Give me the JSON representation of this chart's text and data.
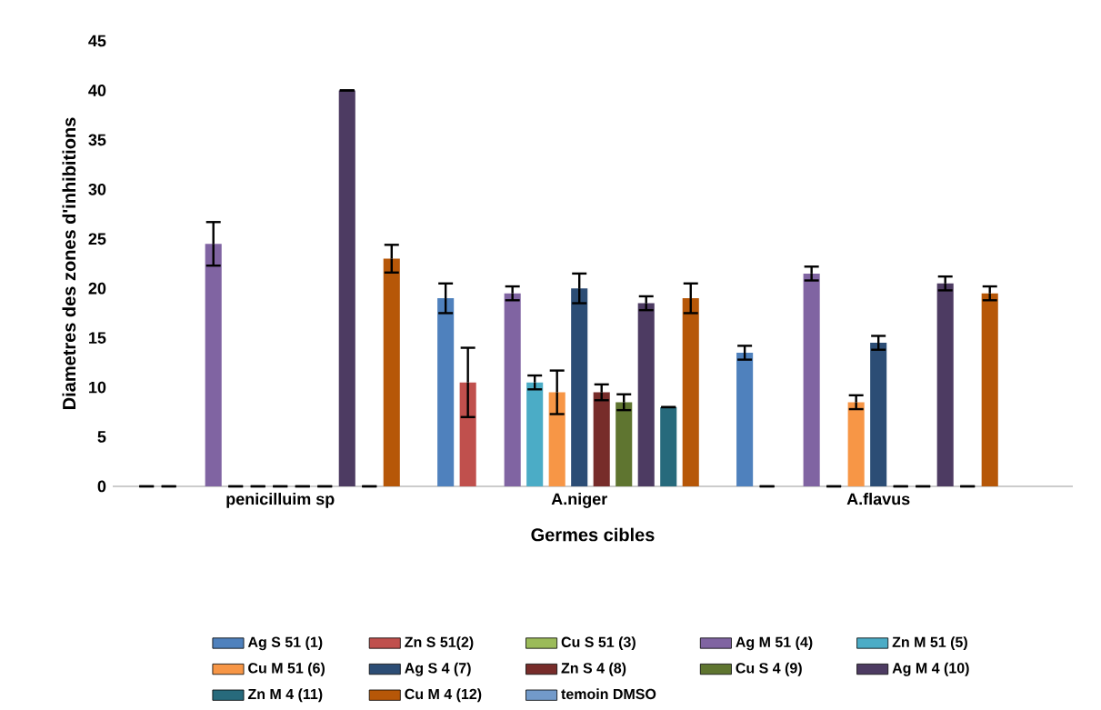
{
  "chart_data": {
    "type": "bar",
    "xlabel": "Germes cibles",
    "ylabel": "Diametres des zones d'inhibitions",
    "categories": [
      "penicilluim sp",
      "A.niger",
      "A.flavus"
    ],
    "ylim": [
      0,
      45
    ],
    "yticks": [
      0,
      5,
      10,
      15,
      20,
      25,
      30,
      35,
      40,
      45
    ],
    "legend": "bottom",
    "series": [
      {
        "name": "Ag S 51 (1)",
        "color": "#4f81bd",
        "values": [
          0,
          19,
          13.5
        ],
        "errors": [
          0,
          1.5,
          0.7
        ]
      },
      {
        "name": "Zn S 51(2)",
        "color": "#c0504d",
        "values": [
          0,
          10.5,
          0
        ],
        "errors": [
          0,
          3.5,
          0
        ]
      },
      {
        "name": "Cu S 51 (3)",
        "color": "#9bbb59",
        "values": [
          null,
          null,
          null
        ],
        "errors": [
          null,
          null,
          null
        ]
      },
      {
        "name": "Ag M 51 (4)",
        "color": "#8064a2",
        "values": [
          24.5,
          19.5,
          21.5
        ],
        "errors": [
          2.2,
          0.7,
          0.7
        ]
      },
      {
        "name": "Zn M 51 (5)",
        "color": "#4bacc6",
        "values": [
          0,
          10.5,
          0
        ],
        "errors": [
          0,
          0.7,
          0
        ]
      },
      {
        "name": "Cu M 51 (6)",
        "color": "#f79646",
        "values": [
          0,
          9.5,
          8.5
        ],
        "errors": [
          0,
          2.2,
          0.7
        ]
      },
      {
        "name": "Ag S 4 (7)",
        "color": "#2c4d75",
        "values": [
          0,
          20,
          14.5
        ],
        "errors": [
          0,
          1.5,
          0.7
        ]
      },
      {
        "name": "Zn S 4 (8)",
        "color": "#772c2a",
        "values": [
          0,
          9.5,
          0
        ],
        "errors": [
          0,
          0.8,
          0
        ]
      },
      {
        "name": "Cu S 4 (9)",
        "color": "#5f7530",
        "values": [
          0,
          8.5,
          0
        ],
        "errors": [
          0,
          0.8,
          0
        ]
      },
      {
        "name": "Ag M 4 (10)",
        "color": "#4d3b62",
        "values": [
          40,
          18.5,
          20.5
        ],
        "errors": [
          0,
          0.7,
          0.7
        ]
      },
      {
        "name": "Zn M 4 (11)",
        "color": "#276a7c",
        "values": [
          0,
          8,
          0
        ],
        "errors": [
          0,
          0,
          0
        ]
      },
      {
        "name": "Cu M 4 (12)",
        "color": "#b65708",
        "values": [
          23,
          19,
          19.5
        ],
        "errors": [
          1.4,
          1.5,
          0.7
        ]
      },
      {
        "name": "temoin DMSO",
        "color": "#729aca",
        "values": [
          null,
          null,
          null
        ],
        "errors": [
          null,
          null,
          null
        ]
      }
    ]
  }
}
